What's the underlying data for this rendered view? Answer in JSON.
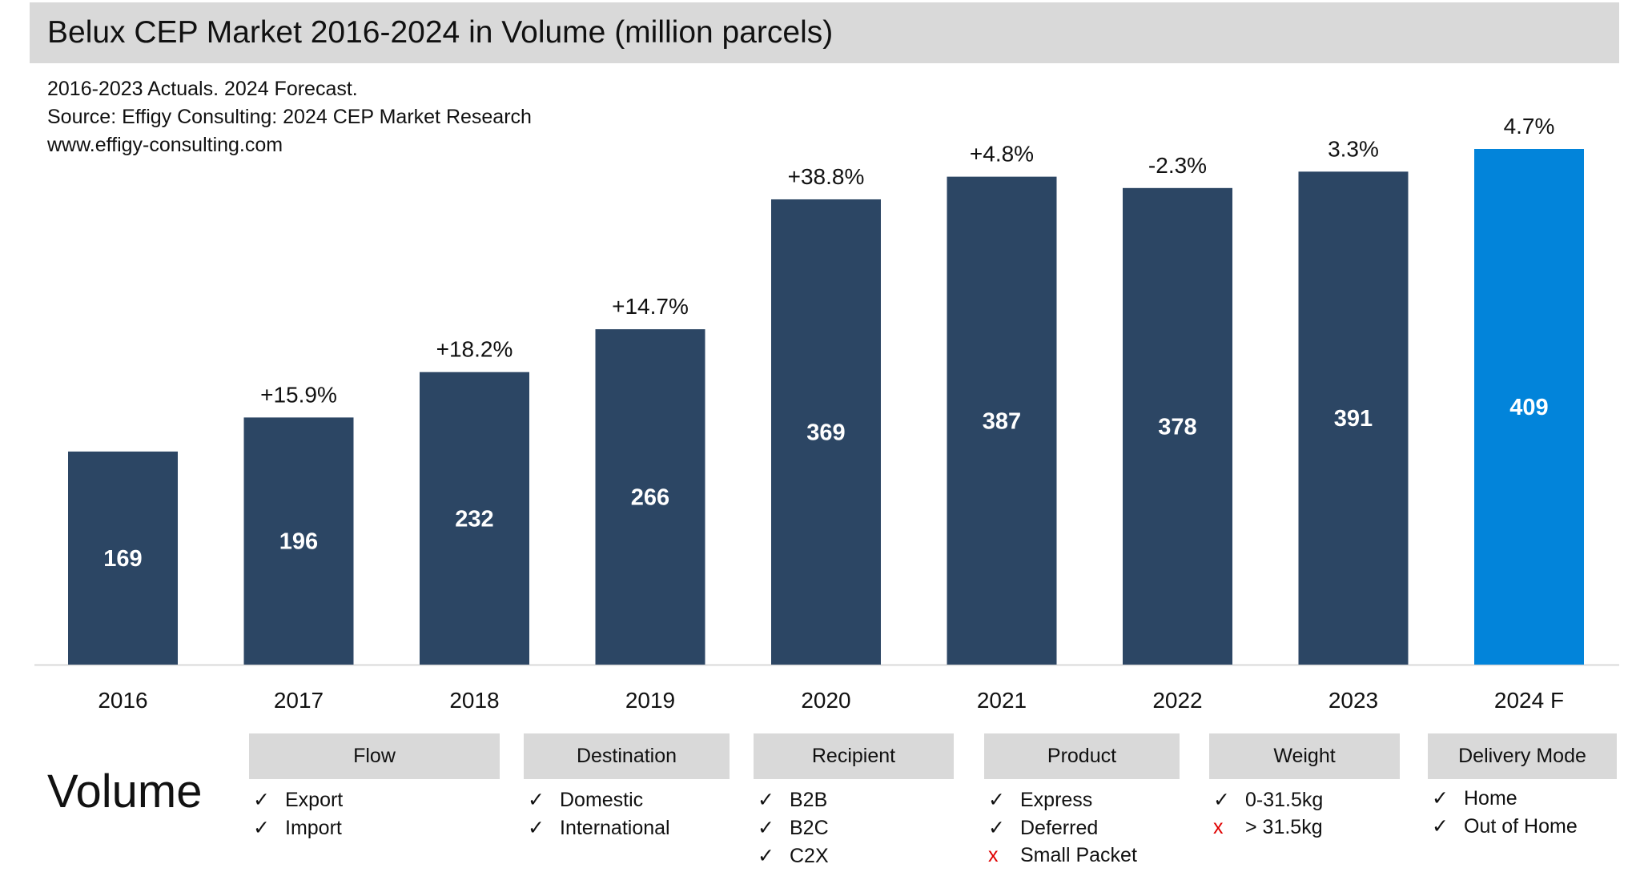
{
  "title": "Belux CEP Market 2016-2024 in Volume (million parcels)",
  "subtitle_lines": [
    "2016-2023 Actuals. 2024 Forecast.",
    "Source: Effigy Consulting: 2024 CEP Market Research",
    "www.effigy-consulting.com"
  ],
  "chart_data": {
    "type": "bar",
    "title": "Belux CEP Market 2016-2024 in Volume (million parcels)",
    "categories": [
      "2016",
      "2017",
      "2018",
      "2019",
      "2020",
      "2021",
      "2022",
      "2023",
      "2024 F"
    ],
    "values": [
      169,
      196,
      232,
      266,
      369,
      387,
      378,
      391,
      409
    ],
    "growth_labels": [
      "",
      "+15.9%",
      "+18.2%",
      "+14.7%",
      "+38.8%",
      "+4.8%",
      "-2.3%",
      "3.3%",
      "4.7%"
    ],
    "ylim": [
      0,
      409
    ],
    "grid": false,
    "colors": {
      "actual": "#2c4664",
      "forecast": "#0284da"
    }
  },
  "volume_label": "Volume",
  "categories_table": [
    {
      "header": "Flow",
      "items": [
        {
          "mark": "check",
          "text": "Export"
        },
        {
          "mark": "check",
          "text": "Import"
        }
      ]
    },
    {
      "header": "Destination",
      "items": [
        {
          "mark": "check",
          "text": "Domestic"
        },
        {
          "mark": "check",
          "text": "International"
        }
      ]
    },
    {
      "header": "Recipient",
      "items": [
        {
          "mark": "check",
          "text": "B2B"
        },
        {
          "mark": "check",
          "text": "B2C"
        },
        {
          "mark": "check",
          "text": "C2X"
        }
      ]
    },
    {
      "header": "Product",
      "items": [
        {
          "mark": "check",
          "text": "Express"
        },
        {
          "mark": "check",
          "text": "Deferred"
        },
        {
          "mark": "cross",
          "text": "Small Packet"
        }
      ]
    },
    {
      "header": "Weight",
      "items": [
        {
          "mark": "check",
          "text": "0-31.5kg"
        },
        {
          "mark": "cross",
          "text": "> 31.5kg"
        }
      ]
    },
    {
      "header": "Delivery Mode",
      "items": [
        {
          "mark": "check",
          "text": "Home"
        },
        {
          "mark": "check",
          "text": "Out of Home"
        }
      ]
    }
  ]
}
